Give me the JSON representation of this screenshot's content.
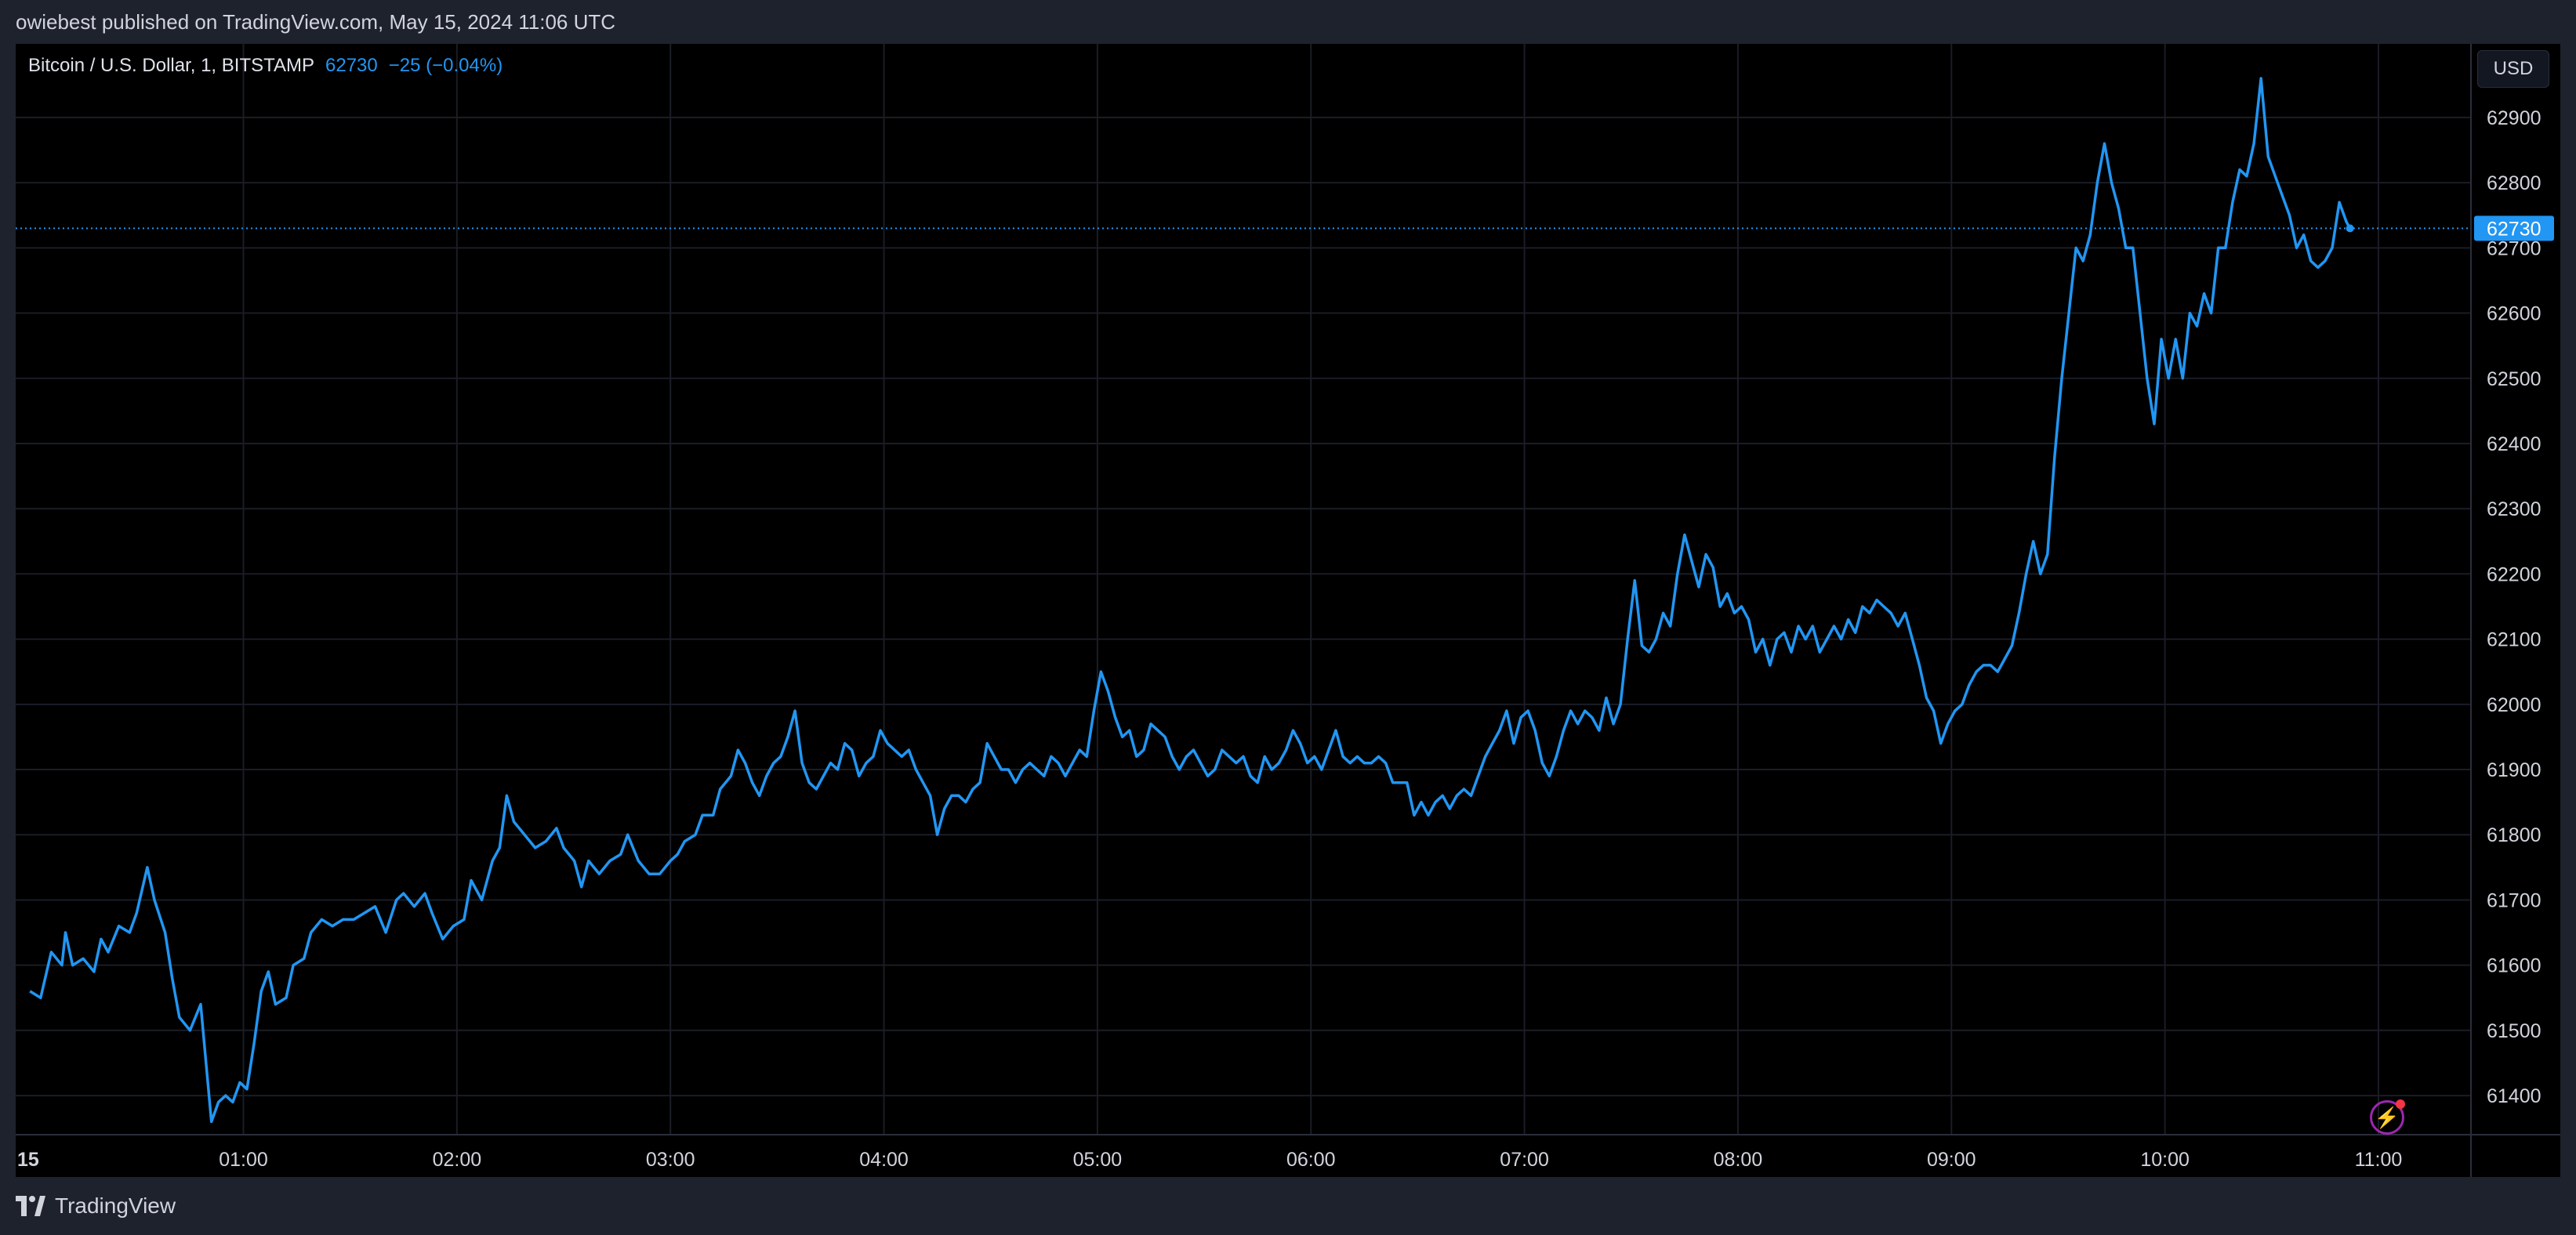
{
  "header": {
    "published_text": "owiebest published on TradingView.com, May 15, 2024 11:06 UTC"
  },
  "legend": {
    "symbol": "Bitcoin / U.S. Dollar, 1, BITSTAMP",
    "last_price": "62730",
    "change": "−25 (−0.04%)"
  },
  "currency_button": "USD",
  "last_price_tag": "62730",
  "footer": {
    "brand": "TradingView"
  },
  "colors": {
    "line": "#2196f3",
    "background": "#000000",
    "grid": "#1a1d26",
    "axis_text": "#d1d4dc"
  },
  "chart_data": {
    "type": "line",
    "title": "Bitcoin / U.S. Dollar, 1, BITSTAMP",
    "ylim": [
      61340,
      62960
    ],
    "y_ticks": [
      "62900",
      "62800",
      "62700",
      "62600",
      "62500",
      "62400",
      "62300",
      "62200",
      "62100",
      "62000",
      "61900",
      "61800",
      "61700",
      "61600",
      "61500",
      "61400"
    ],
    "x_ticks": [
      "15",
      "01:00",
      "02:00",
      "03:00",
      "04:00",
      "05:00",
      "06:00",
      "07:00",
      "08:00",
      "09:00",
      "10:00",
      "11:00"
    ],
    "x_tick_minutes": [
      0,
      60,
      120,
      180,
      240,
      300,
      360,
      420,
      480,
      540,
      600,
      660
    ],
    "x_range_minutes": [
      -4,
      686
    ],
    "last_price": 62730,
    "series": [
      {
        "color": "#2196f3",
        "points": [
          [
            0,
            61560
          ],
          [
            3,
            61550
          ],
          [
            6,
            61620
          ],
          [
            9,
            61600
          ],
          [
            10,
            61650
          ],
          [
            12,
            61600
          ],
          [
            15,
            61610
          ],
          [
            18,
            61590
          ],
          [
            20,
            61640
          ],
          [
            22,
            61620
          ],
          [
            25,
            61660
          ],
          [
            28,
            61650
          ],
          [
            30,
            61680
          ],
          [
            33,
            61750
          ],
          [
            35,
            61700
          ],
          [
            38,
            61650
          ],
          [
            40,
            61580
          ],
          [
            42,
            61520
          ],
          [
            45,
            61500
          ],
          [
            48,
            61540
          ],
          [
            50,
            61420
          ],
          [
            51,
            61360
          ],
          [
            53,
            61390
          ],
          [
            55,
            61400
          ],
          [
            57,
            61390
          ],
          [
            59,
            61420
          ],
          [
            61,
            61410
          ],
          [
            63,
            61480
          ],
          [
            65,
            61560
          ],
          [
            67,
            61590
          ],
          [
            69,
            61540
          ],
          [
            72,
            61550
          ],
          [
            74,
            61600
          ],
          [
            77,
            61610
          ],
          [
            79,
            61650
          ],
          [
            82,
            61670
          ],
          [
            85,
            61660
          ],
          [
            88,
            61670
          ],
          [
            91,
            61670
          ],
          [
            94,
            61680
          ],
          [
            97,
            61690
          ],
          [
            100,
            61650
          ],
          [
            103,
            61700
          ],
          [
            105,
            61710
          ],
          [
            108,
            61690
          ],
          [
            111,
            61710
          ],
          [
            113,
            61680
          ],
          [
            116,
            61640
          ],
          [
            119,
            61660
          ],
          [
            122,
            61670
          ],
          [
            124,
            61730
          ],
          [
            127,
            61700
          ],
          [
            130,
            61760
          ],
          [
            132,
            61780
          ],
          [
            134,
            61860
          ],
          [
            136,
            61820
          ],
          [
            139,
            61800
          ],
          [
            142,
            61780
          ],
          [
            145,
            61790
          ],
          [
            148,
            61810
          ],
          [
            150,
            61780
          ],
          [
            153,
            61760
          ],
          [
            155,
            61720
          ],
          [
            157,
            61760
          ],
          [
            160,
            61740
          ],
          [
            163,
            61760
          ],
          [
            166,
            61770
          ],
          [
            168,
            61800
          ],
          [
            171,
            61760
          ],
          [
            174,
            61740
          ],
          [
            177,
            61740
          ],
          [
            180,
            61760
          ],
          [
            182,
            61770
          ],
          [
            184,
            61790
          ],
          [
            187,
            61800
          ],
          [
            189,
            61830
          ],
          [
            192,
            61830
          ],
          [
            194,
            61870
          ],
          [
            197,
            61890
          ],
          [
            199,
            61930
          ],
          [
            201,
            61910
          ],
          [
            203,
            61880
          ],
          [
            205,
            61860
          ],
          [
            207,
            61890
          ],
          [
            209,
            61910
          ],
          [
            211,
            61920
          ],
          [
            213,
            61950
          ],
          [
            215,
            61990
          ],
          [
            217,
            61910
          ],
          [
            219,
            61880
          ],
          [
            221,
            61870
          ],
          [
            223,
            61890
          ],
          [
            225,
            61910
          ],
          [
            227,
            61900
          ],
          [
            229,
            61940
          ],
          [
            231,
            61930
          ],
          [
            233,
            61890
          ],
          [
            235,
            61910
          ],
          [
            237,
            61920
          ],
          [
            239,
            61960
          ],
          [
            241,
            61940
          ],
          [
            243,
            61930
          ],
          [
            245,
            61920
          ],
          [
            247,
            61930
          ],
          [
            249,
            61900
          ],
          [
            251,
            61880
          ],
          [
            253,
            61860
          ],
          [
            255,
            61800
          ],
          [
            257,
            61840
          ],
          [
            259,
            61860
          ],
          [
            261,
            61860
          ],
          [
            263,
            61850
          ],
          [
            265,
            61870
          ],
          [
            267,
            61880
          ],
          [
            269,
            61940
          ],
          [
            271,
            61920
          ],
          [
            273,
            61900
          ],
          [
            275,
            61900
          ],
          [
            277,
            61880
          ],
          [
            279,
            61900
          ],
          [
            281,
            61910
          ],
          [
            283,
            61900
          ],
          [
            285,
            61890
          ],
          [
            287,
            61920
          ],
          [
            289,
            61910
          ],
          [
            291,
            61890
          ],
          [
            293,
            61910
          ],
          [
            295,
            61930
          ],
          [
            297,
            61920
          ],
          [
            299,
            61990
          ],
          [
            301,
            62050
          ],
          [
            303,
            62020
          ],
          [
            305,
            61980
          ],
          [
            307,
            61950
          ],
          [
            309,
            61960
          ],
          [
            311,
            61920
          ],
          [
            313,
            61930
          ],
          [
            315,
            61970
          ],
          [
            317,
            61960
          ],
          [
            319,
            61950
          ],
          [
            321,
            61920
          ],
          [
            323,
            61900
          ],
          [
            325,
            61920
          ],
          [
            327,
            61930
          ],
          [
            329,
            61910
          ],
          [
            331,
            61890
          ],
          [
            333,
            61900
          ],
          [
            335,
            61930
          ],
          [
            337,
            61920
          ],
          [
            339,
            61910
          ],
          [
            341,
            61920
          ],
          [
            343,
            61890
          ],
          [
            345,
            61880
          ],
          [
            347,
            61920
          ],
          [
            349,
            61900
          ],
          [
            351,
            61910
          ],
          [
            353,
            61930
          ],
          [
            355,
            61960
          ],
          [
            357,
            61940
          ],
          [
            359,
            61910
          ],
          [
            361,
            61920
          ],
          [
            363,
            61900
          ],
          [
            365,
            61930
          ],
          [
            367,
            61960
          ],
          [
            369,
            61920
          ],
          [
            371,
            61910
          ],
          [
            373,
            61920
          ],
          [
            375,
            61910
          ],
          [
            377,
            61910
          ],
          [
            379,
            61920
          ],
          [
            381,
            61910
          ],
          [
            383,
            61880
          ],
          [
            385,
            61880
          ],
          [
            387,
            61880
          ],
          [
            389,
            61830
          ],
          [
            391,
            61850
          ],
          [
            393,
            61830
          ],
          [
            395,
            61850
          ],
          [
            397,
            61860
          ],
          [
            399,
            61840
          ],
          [
            401,
            61860
          ],
          [
            403,
            61870
          ],
          [
            405,
            61860
          ],
          [
            407,
            61890
          ],
          [
            409,
            61920
          ],
          [
            411,
            61940
          ],
          [
            413,
            61960
          ],
          [
            415,
            61990
          ],
          [
            417,
            61940
          ],
          [
            419,
            61980
          ],
          [
            421,
            61990
          ],
          [
            423,
            61960
          ],
          [
            425,
            61910
          ],
          [
            427,
            61890
          ],
          [
            429,
            61920
          ],
          [
            431,
            61960
          ],
          [
            433,
            61990
          ],
          [
            435,
            61970
          ],
          [
            437,
            61990
          ],
          [
            439,
            61980
          ],
          [
            441,
            61960
          ],
          [
            443,
            62010
          ],
          [
            445,
            61970
          ],
          [
            447,
            62000
          ],
          [
            449,
            62100
          ],
          [
            451,
            62190
          ],
          [
            453,
            62090
          ],
          [
            455,
            62080
          ],
          [
            457,
            62100
          ],
          [
            459,
            62140
          ],
          [
            461,
            62120
          ],
          [
            463,
            62200
          ],
          [
            465,
            62260
          ],
          [
            467,
            62220
          ],
          [
            469,
            62180
          ],
          [
            471,
            62230
          ],
          [
            473,
            62210
          ],
          [
            475,
            62150
          ],
          [
            477,
            62170
          ],
          [
            479,
            62140
          ],
          [
            481,
            62150
          ],
          [
            483,
            62130
          ],
          [
            485,
            62080
          ],
          [
            487,
            62100
          ],
          [
            489,
            62060
          ],
          [
            491,
            62100
          ],
          [
            493,
            62110
          ],
          [
            495,
            62080
          ],
          [
            497,
            62120
          ],
          [
            499,
            62100
          ],
          [
            501,
            62120
          ],
          [
            503,
            62080
          ],
          [
            505,
            62100
          ],
          [
            507,
            62120
          ],
          [
            509,
            62100
          ],
          [
            511,
            62130
          ],
          [
            513,
            62110
          ],
          [
            515,
            62150
          ],
          [
            517,
            62140
          ],
          [
            519,
            62160
          ],
          [
            521,
            62150
          ],
          [
            523,
            62140
          ],
          [
            525,
            62120
          ],
          [
            527,
            62140
          ],
          [
            529,
            62100
          ],
          [
            531,
            62060
          ],
          [
            533,
            62010
          ],
          [
            535,
            61990
          ],
          [
            537,
            61940
          ],
          [
            539,
            61970
          ],
          [
            541,
            61990
          ],
          [
            543,
            62000
          ],
          [
            545,
            62030
          ],
          [
            547,
            62050
          ],
          [
            549,
            62060
          ],
          [
            551,
            62060
          ],
          [
            553,
            62050
          ],
          [
            555,
            62070
          ],
          [
            557,
            62090
          ],
          [
            559,
            62140
          ],
          [
            561,
            62200
          ],
          [
            563,
            62250
          ],
          [
            565,
            62200
          ],
          [
            567,
            62230
          ],
          [
            569,
            62380
          ],
          [
            571,
            62500
          ],
          [
            573,
            62600
          ],
          [
            575,
            62700
          ],
          [
            577,
            62680
          ],
          [
            579,
            62720
          ],
          [
            581,
            62800
          ],
          [
            583,
            62860
          ],
          [
            585,
            62800
          ],
          [
            587,
            62760
          ],
          [
            589,
            62700
          ],
          [
            591,
            62700
          ],
          [
            593,
            62600
          ],
          [
            595,
            62500
          ],
          [
            597,
            62430
          ],
          [
            599,
            62560
          ],
          [
            601,
            62500
          ],
          [
            603,
            62560
          ],
          [
            605,
            62500
          ],
          [
            607,
            62600
          ],
          [
            609,
            62580
          ],
          [
            611,
            62630
          ],
          [
            613,
            62600
          ],
          [
            615,
            62700
          ],
          [
            617,
            62700
          ],
          [
            619,
            62770
          ],
          [
            621,
            62820
          ],
          [
            623,
            62810
          ],
          [
            625,
            62860
          ],
          [
            627,
            62960
          ],
          [
            629,
            62840
          ],
          [
            631,
            62810
          ],
          [
            633,
            62780
          ],
          [
            635,
            62750
          ],
          [
            637,
            62700
          ],
          [
            639,
            62720
          ],
          [
            641,
            62680
          ],
          [
            643,
            62670
          ],
          [
            645,
            62680
          ],
          [
            647,
            62700
          ],
          [
            649,
            62770
          ],
          [
            651,
            62740
          ],
          [
            652,
            62730
          ]
        ]
      }
    ]
  }
}
